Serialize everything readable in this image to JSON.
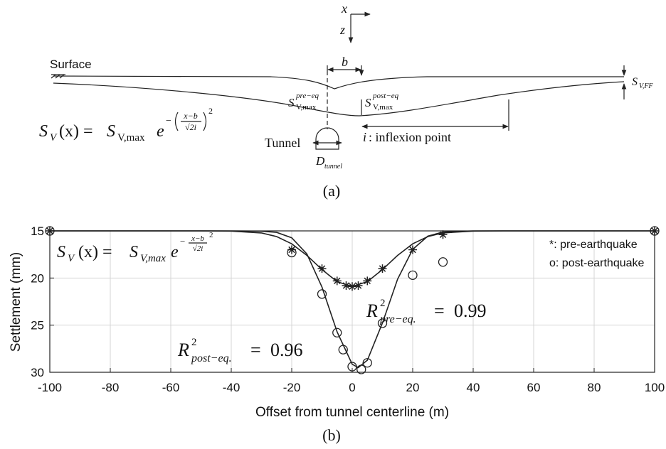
{
  "figure_a": {
    "axis_x": "x",
    "axis_z": "z",
    "surface": "Surface",
    "b": "b",
    "pre_label": {
      "base": "S",
      "sub": "V,max",
      "sup": "pre−eq"
    },
    "post_label": {
      "base": "S",
      "sub": "V,max",
      "sup": "post−eq"
    },
    "ff_label": {
      "base": "S",
      "sub": "V,FF"
    },
    "tunnel": "Tunnel",
    "d_label": {
      "base": "D",
      "sub": "tunnel"
    },
    "inflexion": {
      "var": "i",
      "text": ": inflexion point"
    },
    "formula": {
      "lhs": "S",
      "lhs_sub": "V",
      "mid": "(x) =",
      "rhs": "S",
      "rhs_sub": "V,max",
      "e": "e",
      "sign": "−",
      "num": "x−b",
      "den": "√2i",
      "power": "2"
    },
    "caption": "(a)"
  },
  "chart_data": {
    "type": "scatter",
    "xlabel": "Offset from tunnel centerline (m)",
    "ylabel": "Settlement (mm)",
    "xlim": [
      -100,
      100
    ],
    "xticks": [
      -100,
      -80,
      -60,
      -40,
      -20,
      0,
      20,
      40,
      60,
      80,
      100
    ],
    "ylim": [
      15,
      30
    ],
    "yticks": [
      15,
      20,
      25,
      30
    ],
    "yreverse": true,
    "grid": true,
    "legend": "top-right",
    "series": [
      {
        "name": "*: pre-earthquake",
        "marker": "asterisk",
        "color": "#222222",
        "x": [
          -100,
          -20,
          -10,
          -5,
          -2,
          0,
          2,
          5,
          10,
          20,
          30,
          100
        ],
        "values": [
          15,
          17,
          19,
          20.3,
          20.8,
          20.9,
          20.8,
          20.3,
          19,
          17,
          15.4,
          15
        ]
      },
      {
        "name": "o: post-earthquake",
        "marker": "circle",
        "color": "#222222",
        "x": [
          -100,
          -20,
          -10,
          -5,
          -3,
          0,
          3,
          5,
          10,
          20,
          30,
          100
        ],
        "values": [
          15,
          17.3,
          21.7,
          25.8,
          27.6,
          29.4,
          29.7,
          29,
          24.8,
          19.7,
          18.3,
          15
        ]
      }
    ],
    "fits": [
      {
        "color": "#222222",
        "x": [
          -100,
          -50,
          -40,
          -30,
          -25,
          -20,
          -15,
          -10,
          -5,
          0,
          5,
          10,
          15,
          20,
          25,
          30,
          40,
          50,
          100
        ],
        "values": [
          15,
          15,
          15.02,
          15.22,
          15.6,
          16.37,
          17.6,
          19.1,
          20.39,
          20.9,
          20.39,
          19.1,
          17.6,
          16.37,
          15.6,
          15.22,
          15.02,
          15,
          15
        ]
      },
      {
        "color": "#222222",
        "x": [
          -100,
          -40,
          -30,
          -25,
          -20,
          -15,
          -10,
          -5,
          0,
          2,
          5,
          10,
          15,
          20,
          25,
          30,
          40,
          100
        ],
        "values": [
          15,
          15,
          15.03,
          15.16,
          15.73,
          17.44,
          20.96,
          25.72,
          29.15,
          29.5,
          28.72,
          24.77,
          20.12,
          16.96,
          15.56,
          15.11,
          15,
          15
        ]
      }
    ],
    "formula": {
      "lhs": "S",
      "lhs_sub": "V",
      "mid": "(x) =",
      "rhs": "S",
      "rhs_sub": "V,max",
      "e": "e",
      "sign": "−",
      "num": "x−b",
      "den": "√2i",
      "power": "2"
    },
    "r2_pre": {
      "base": "R",
      "sup": "2",
      "sub": "pre−eq.",
      "eq": "=",
      "value": 0.99
    },
    "r2_post": {
      "base": "R",
      "sup": "2",
      "sub": "post−eq.",
      "eq": "=",
      "value": 0.96
    },
    "caption": "(b)"
  }
}
